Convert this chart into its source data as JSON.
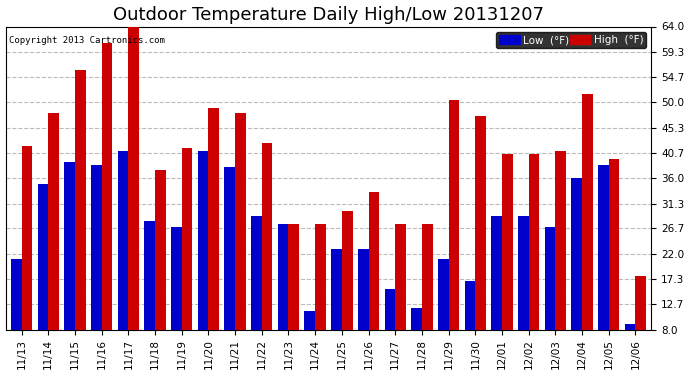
{
  "title": "Outdoor Temperature Daily High/Low 20131207",
  "copyright_text": "Copyright 2013 Cartronics.com",
  "categories": [
    "11/13",
    "11/14",
    "11/15",
    "11/16",
    "11/17",
    "11/18",
    "11/19",
    "11/20",
    "11/21",
    "11/22",
    "11/23",
    "11/24",
    "11/25",
    "11/26",
    "11/27",
    "11/28",
    "11/29",
    "11/30",
    "12/01",
    "12/02",
    "12/03",
    "12/04",
    "12/05",
    "12/06"
  ],
  "low_values": [
    21.0,
    35.0,
    39.0,
    38.5,
    41.0,
    28.0,
    27.0,
    41.0,
    38.0,
    29.0,
    27.5,
    11.5,
    23.0,
    23.0,
    15.5,
    12.0,
    21.0,
    17.0,
    29.0,
    29.0,
    27.0,
    36.0,
    38.5,
    9.0
  ],
  "high_values": [
    42.0,
    48.0,
    56.0,
    61.0,
    64.0,
    37.5,
    41.5,
    49.0,
    48.0,
    42.5,
    27.5,
    27.5,
    30.0,
    33.5,
    27.5,
    27.5,
    50.5,
    47.5,
    40.5,
    40.5,
    41.0,
    51.5,
    39.5,
    18.0
  ],
  "low_color": "#0000cc",
  "high_color": "#cc0000",
  "bg_color": "#ffffff",
  "plot_bg_color": "#ffffff",
  "grid_color": "#bbbbbb",
  "ylim_min": 8.0,
  "ylim_max": 64.0,
  "yticks": [
    8.0,
    12.7,
    17.3,
    22.0,
    26.7,
    31.3,
    36.0,
    40.7,
    45.3,
    50.0,
    54.7,
    59.3,
    64.0
  ],
  "title_fontsize": 13,
  "tick_fontsize": 7.5,
  "legend_low_label": "Low  (°F)",
  "legend_high_label": "High  (°F)"
}
